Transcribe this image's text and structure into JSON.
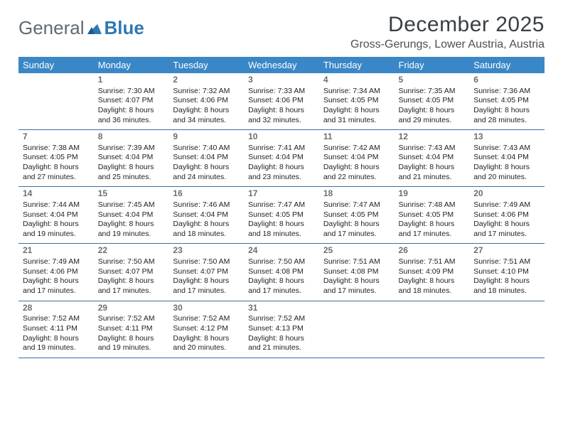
{
  "logo": {
    "part1": "General",
    "part2": "Blue"
  },
  "title": "December 2025",
  "location": "Gross-Gerungs, Lower Austria, Austria",
  "colors": {
    "header_bg": "#3a87c7",
    "header_text": "#ffffff",
    "rule": "#3a6fa0",
    "logo_gray": "#5f6a72",
    "logo_blue": "#2f79b5"
  },
  "weekdays": [
    "Sunday",
    "Monday",
    "Tuesday",
    "Wednesday",
    "Thursday",
    "Friday",
    "Saturday"
  ],
  "weeks": [
    [
      null,
      {
        "n": "1",
        "sr": "Sunrise: 7:30 AM",
        "ss": "Sunset: 4:07 PM",
        "dl": "Daylight: 8 hours and 36 minutes."
      },
      {
        "n": "2",
        "sr": "Sunrise: 7:32 AM",
        "ss": "Sunset: 4:06 PM",
        "dl": "Daylight: 8 hours and 34 minutes."
      },
      {
        "n": "3",
        "sr": "Sunrise: 7:33 AM",
        "ss": "Sunset: 4:06 PM",
        "dl": "Daylight: 8 hours and 32 minutes."
      },
      {
        "n": "4",
        "sr": "Sunrise: 7:34 AM",
        "ss": "Sunset: 4:05 PM",
        "dl": "Daylight: 8 hours and 31 minutes."
      },
      {
        "n": "5",
        "sr": "Sunrise: 7:35 AM",
        "ss": "Sunset: 4:05 PM",
        "dl": "Daylight: 8 hours and 29 minutes."
      },
      {
        "n": "6",
        "sr": "Sunrise: 7:36 AM",
        "ss": "Sunset: 4:05 PM",
        "dl": "Daylight: 8 hours and 28 minutes."
      }
    ],
    [
      {
        "n": "7",
        "sr": "Sunrise: 7:38 AM",
        "ss": "Sunset: 4:05 PM",
        "dl": "Daylight: 8 hours and 27 minutes."
      },
      {
        "n": "8",
        "sr": "Sunrise: 7:39 AM",
        "ss": "Sunset: 4:04 PM",
        "dl": "Daylight: 8 hours and 25 minutes."
      },
      {
        "n": "9",
        "sr": "Sunrise: 7:40 AM",
        "ss": "Sunset: 4:04 PM",
        "dl": "Daylight: 8 hours and 24 minutes."
      },
      {
        "n": "10",
        "sr": "Sunrise: 7:41 AM",
        "ss": "Sunset: 4:04 PM",
        "dl": "Daylight: 8 hours and 23 minutes."
      },
      {
        "n": "11",
        "sr": "Sunrise: 7:42 AM",
        "ss": "Sunset: 4:04 PM",
        "dl": "Daylight: 8 hours and 22 minutes."
      },
      {
        "n": "12",
        "sr": "Sunrise: 7:43 AM",
        "ss": "Sunset: 4:04 PM",
        "dl": "Daylight: 8 hours and 21 minutes."
      },
      {
        "n": "13",
        "sr": "Sunrise: 7:43 AM",
        "ss": "Sunset: 4:04 PM",
        "dl": "Daylight: 8 hours and 20 minutes."
      }
    ],
    [
      {
        "n": "14",
        "sr": "Sunrise: 7:44 AM",
        "ss": "Sunset: 4:04 PM",
        "dl": "Daylight: 8 hours and 19 minutes."
      },
      {
        "n": "15",
        "sr": "Sunrise: 7:45 AM",
        "ss": "Sunset: 4:04 PM",
        "dl": "Daylight: 8 hours and 19 minutes."
      },
      {
        "n": "16",
        "sr": "Sunrise: 7:46 AM",
        "ss": "Sunset: 4:04 PM",
        "dl": "Daylight: 8 hours and 18 minutes."
      },
      {
        "n": "17",
        "sr": "Sunrise: 7:47 AM",
        "ss": "Sunset: 4:05 PM",
        "dl": "Daylight: 8 hours and 18 minutes."
      },
      {
        "n": "18",
        "sr": "Sunrise: 7:47 AM",
        "ss": "Sunset: 4:05 PM",
        "dl": "Daylight: 8 hours and 17 minutes."
      },
      {
        "n": "19",
        "sr": "Sunrise: 7:48 AM",
        "ss": "Sunset: 4:05 PM",
        "dl": "Daylight: 8 hours and 17 minutes."
      },
      {
        "n": "20",
        "sr": "Sunrise: 7:49 AM",
        "ss": "Sunset: 4:06 PM",
        "dl": "Daylight: 8 hours and 17 minutes."
      }
    ],
    [
      {
        "n": "21",
        "sr": "Sunrise: 7:49 AM",
        "ss": "Sunset: 4:06 PM",
        "dl": "Daylight: 8 hours and 17 minutes."
      },
      {
        "n": "22",
        "sr": "Sunrise: 7:50 AM",
        "ss": "Sunset: 4:07 PM",
        "dl": "Daylight: 8 hours and 17 minutes."
      },
      {
        "n": "23",
        "sr": "Sunrise: 7:50 AM",
        "ss": "Sunset: 4:07 PM",
        "dl": "Daylight: 8 hours and 17 minutes."
      },
      {
        "n": "24",
        "sr": "Sunrise: 7:50 AM",
        "ss": "Sunset: 4:08 PM",
        "dl": "Daylight: 8 hours and 17 minutes."
      },
      {
        "n": "25",
        "sr": "Sunrise: 7:51 AM",
        "ss": "Sunset: 4:08 PM",
        "dl": "Daylight: 8 hours and 17 minutes."
      },
      {
        "n": "26",
        "sr": "Sunrise: 7:51 AM",
        "ss": "Sunset: 4:09 PM",
        "dl": "Daylight: 8 hours and 18 minutes."
      },
      {
        "n": "27",
        "sr": "Sunrise: 7:51 AM",
        "ss": "Sunset: 4:10 PM",
        "dl": "Daylight: 8 hours and 18 minutes."
      }
    ],
    [
      {
        "n": "28",
        "sr": "Sunrise: 7:52 AM",
        "ss": "Sunset: 4:11 PM",
        "dl": "Daylight: 8 hours and 19 minutes."
      },
      {
        "n": "29",
        "sr": "Sunrise: 7:52 AM",
        "ss": "Sunset: 4:11 PM",
        "dl": "Daylight: 8 hours and 19 minutes."
      },
      {
        "n": "30",
        "sr": "Sunrise: 7:52 AM",
        "ss": "Sunset: 4:12 PM",
        "dl": "Daylight: 8 hours and 20 minutes."
      },
      {
        "n": "31",
        "sr": "Sunrise: 7:52 AM",
        "ss": "Sunset: 4:13 PM",
        "dl": "Daylight: 8 hours and 21 minutes."
      },
      null,
      null,
      null
    ]
  ]
}
